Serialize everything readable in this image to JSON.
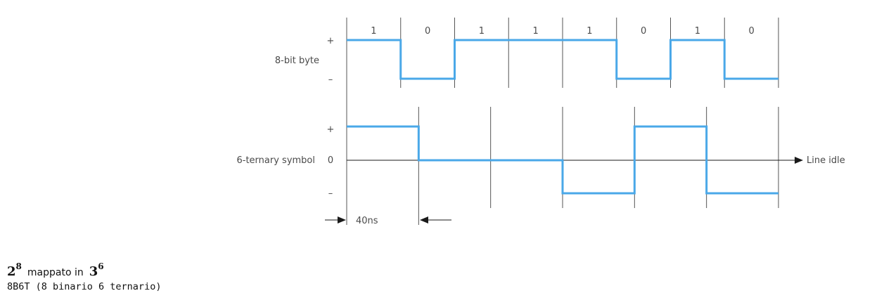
{
  "diagram": {
    "byte_label": "8-bit byte",
    "symbol_label": "6-ternary symbol",
    "bits": [
      "1",
      "0",
      "1",
      "1",
      "1",
      "0",
      "1",
      "0"
    ],
    "byte_level_marks": {
      "plus": "+",
      "minus": "–"
    },
    "ternary_levels": [
      1,
      0,
      0,
      -1,
      1,
      -1
    ],
    "symbol_level_marks": {
      "plus": "+",
      "zero": "0",
      "minus": "–"
    },
    "line_idle_label": "Line idle",
    "period_label": "40ns",
    "colors": {
      "signal": "#4aa8e8",
      "grid": "#555555",
      "axis": "#1a1a1a",
      "text": "#4a4a4a"
    }
  },
  "caption": {
    "base1": "2",
    "exp1": "8",
    "word": "mappato in",
    "base2": "3",
    "exp2": "6",
    "code_line": "8B6T (8 binario 6 ternario)"
  }
}
